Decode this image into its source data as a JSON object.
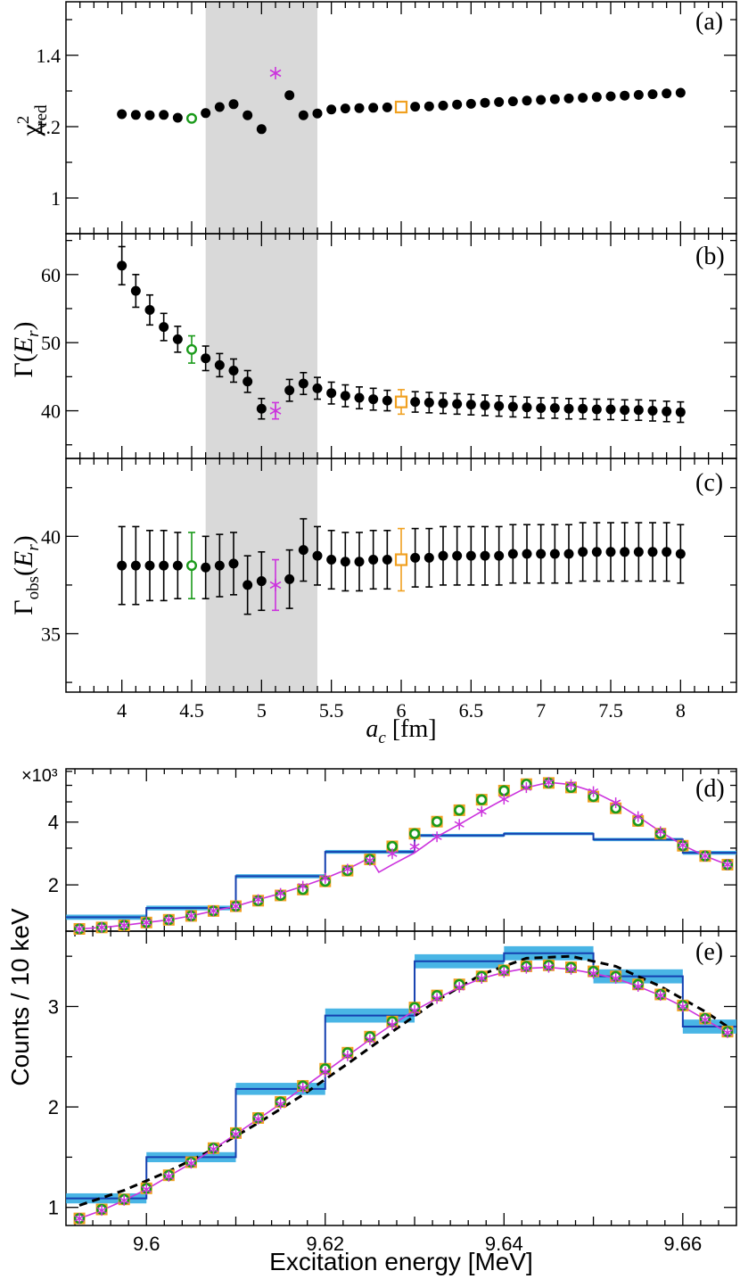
{
  "colors": {
    "black": "#000000",
    "green": "#1a9a1a",
    "orange": "#f0a020",
    "magenta": "#cc33dd",
    "band": "#d9d9d9",
    "hist_line": "#1540b0",
    "hist_fill": "#29a8e0"
  },
  "axes_labels": {
    "top_xlabel_var": "a",
    "top_xlabel_sub": "c",
    "top_xlabel_unit": " [fm]",
    "panel_a_ylabel_main": "χ",
    "panel_a_ylabel_sup": "2",
    "panel_a_ylabel_sub": "red",
    "panel_b_ylabel_main": "Γ(",
    "panel_b_ylabel_var": "E",
    "panel_b_ylabel_sub": "r",
    "panel_b_ylabel_end": ")",
    "panel_c_ylabel_main": "Γ",
    "panel_c_ylabel_sub": "obs",
    "panel_c_ylabel_paren": "(",
    "panel_c_ylabel_var": "E",
    "panel_c_ylabel_sub2": "r",
    "panel_c_ylabel_end": ")",
    "bottom_ylabel": "Counts / 10 keV",
    "bottom_xlabel": "Excitation energy [MeV]",
    "multiplier": "×10³"
  },
  "chart_data": [
    {
      "panel": "(a)",
      "type": "scatter",
      "xlim": [
        3.6,
        8.4
      ],
      "ylim": [
        0.9,
        1.55
      ],
      "yticks": [
        1,
        1.2,
        1.4
      ],
      "shaded_band": [
        4.6,
        5.4
      ],
      "series": [
        {
          "name": "fits",
          "x": [
            4.0,
            4.1,
            4.2,
            4.3,
            4.4,
            4.6,
            4.7,
            4.8,
            4.9,
            5.0,
            5.2,
            5.3,
            5.4,
            5.5,
            5.6,
            5.7,
            5.8,
            5.9,
            6.1,
            6.2,
            6.3,
            6.4,
            6.5,
            6.6,
            6.7,
            6.8,
            6.9,
            7.0,
            7.1,
            7.2,
            7.3,
            7.4,
            7.5,
            7.6,
            7.7,
            7.8,
            7.9,
            8.0
          ],
          "y": [
            1.235,
            1.233,
            1.232,
            1.233,
            1.225,
            1.238,
            1.255,
            1.263,
            1.232,
            1.193,
            1.288,
            1.232,
            1.237,
            1.248,
            1.251,
            1.252,
            1.253,
            1.254,
            1.256,
            1.257,
            1.259,
            1.262,
            1.264,
            1.267,
            1.269,
            1.271,
            1.273,
            1.275,
            1.277,
            1.279,
            1.281,
            1.283,
            1.285,
            1.287,
            1.289,
            1.291,
            1.293,
            1.295
          ]
        },
        {
          "name": "green",
          "x": [
            4.5
          ],
          "y": [
            1.223
          ]
        },
        {
          "name": "magenta",
          "x": [
            5.1
          ],
          "y": [
            1.35
          ]
        },
        {
          "name": "orange",
          "x": [
            6.0
          ],
          "y": [
            1.255
          ]
        }
      ]
    },
    {
      "panel": "(b)",
      "type": "scatter",
      "xlim": [
        3.6,
        8.4
      ],
      "ylim": [
        33,
        66
      ],
      "yticks": [
        40,
        50,
        60
      ],
      "shaded_band": [
        4.6,
        5.4
      ],
      "series": [
        {
          "name": "fits",
          "x": [
            4.0,
            4.1,
            4.2,
            4.3,
            4.4,
            4.6,
            4.7,
            4.8,
            4.9,
            5.0,
            5.2,
            5.3,
            5.4,
            5.5,
            5.6,
            5.7,
            5.8,
            5.9,
            6.1,
            6.2,
            6.3,
            6.4,
            6.5,
            6.6,
            6.7,
            6.8,
            6.9,
            7.0,
            7.1,
            7.2,
            7.3,
            7.4,
            7.5,
            7.6,
            7.7,
            7.8,
            7.9,
            8.0
          ],
          "y": [
            61.3,
            57.6,
            54.8,
            52.3,
            50.5,
            47.7,
            46.7,
            45.9,
            44.3,
            40.3,
            43.0,
            44.0,
            43.3,
            42.6,
            42.2,
            41.9,
            41.7,
            41.5,
            41.3,
            41.2,
            41.1,
            41.0,
            40.9,
            40.8,
            40.7,
            40.6,
            40.5,
            40.4,
            40.4,
            40.3,
            40.3,
            40.2,
            40.2,
            40.1,
            40.1,
            40.0,
            39.9,
            39.8
          ],
          "err": [
            2.8,
            2.4,
            2.2,
            2.0,
            1.9,
            1.8,
            1.7,
            1.7,
            1.6,
            1.5,
            1.6,
            1.6,
            1.6,
            1.6,
            1.6,
            1.6,
            1.6,
            1.5,
            1.5,
            1.5,
            1.5,
            1.5,
            1.5,
            1.5,
            1.5,
            1.5,
            1.5,
            1.5,
            1.5,
            1.5,
            1.5,
            1.5,
            1.5,
            1.5,
            1.5,
            1.5,
            1.5,
            1.5
          ]
        },
        {
          "name": "green",
          "x": [
            4.5
          ],
          "y": [
            49.0
          ],
          "err": [
            2.0
          ]
        },
        {
          "name": "magenta",
          "x": [
            5.1
          ],
          "y": [
            40.0
          ],
          "err": [
            1.2
          ]
        },
        {
          "name": "orange",
          "x": [
            6.0
          ],
          "y": [
            41.3
          ],
          "err": [
            1.8
          ]
        }
      ]
    },
    {
      "panel": "(c)",
      "type": "scatter",
      "xlim": [
        3.6,
        8.4
      ],
      "ylim": [
        32,
        44
      ],
      "yticks": [
        35,
        40
      ],
      "shaded_band": [
        4.6,
        5.4
      ],
      "xticks": [
        4,
        4.5,
        5,
        5.5,
        6,
        6.5,
        7,
        7.5,
        8
      ],
      "series": [
        {
          "name": "fits",
          "x": [
            4.0,
            4.1,
            4.2,
            4.3,
            4.4,
            4.6,
            4.7,
            4.8,
            4.9,
            5.0,
            5.2,
            5.3,
            5.4,
            5.5,
            5.6,
            5.7,
            5.8,
            5.9,
            6.1,
            6.2,
            6.3,
            6.4,
            6.5,
            6.6,
            6.7,
            6.8,
            6.9,
            7.0,
            7.1,
            7.2,
            7.3,
            7.4,
            7.5,
            7.6,
            7.7,
            7.8,
            7.9,
            8.0
          ],
          "y": [
            38.5,
            38.5,
            38.5,
            38.5,
            38.5,
            38.4,
            38.5,
            38.6,
            37.5,
            37.7,
            37.8,
            39.3,
            39.0,
            38.8,
            38.7,
            38.7,
            38.8,
            38.8,
            38.9,
            38.9,
            39.0,
            39.0,
            39.0,
            39.0,
            39.0,
            39.1,
            39.1,
            39.1,
            39.1,
            39.1,
            39.2,
            39.2,
            39.2,
            39.2,
            39.2,
            39.2,
            39.2,
            39.1
          ],
          "err": [
            2.0,
            2.0,
            1.8,
            1.8,
            1.7,
            1.6,
            1.6,
            1.6,
            1.5,
            1.5,
            1.5,
            1.6,
            1.5,
            1.5,
            1.5,
            1.5,
            1.5,
            1.5,
            1.5,
            1.5,
            1.5,
            1.5,
            1.5,
            1.5,
            1.5,
            1.5,
            1.5,
            1.5,
            1.5,
            1.5,
            1.5,
            1.5,
            1.5,
            1.5,
            1.5,
            1.5,
            1.5,
            1.5
          ]
        },
        {
          "name": "green",
          "x": [
            4.5
          ],
          "y": [
            38.5
          ],
          "err": [
            1.7
          ]
        },
        {
          "name": "magenta",
          "x": [
            5.1
          ],
          "y": [
            37.5
          ],
          "err": [
            1.3
          ]
        },
        {
          "name": "orange",
          "x": [
            6.0
          ],
          "y": [
            38.8
          ],
          "err": [
            1.6
          ]
        }
      ]
    },
    {
      "panel": "(d)",
      "type": "line",
      "yscale": "log",
      "xlim": [
        9.591,
        9.666
      ],
      "ylim": [
        1.2,
        7.2
      ],
      "yticks": [
        2,
        4
      ],
      "hist_edges": [
        9.59,
        9.6,
        9.61,
        9.62,
        9.63,
        9.64,
        9.65,
        9.66,
        9.67
      ],
      "hist_values": [
        1.4,
        1.55,
        2.2,
        2.88,
        3.45,
        3.52,
        3.3,
        2.85
      ],
      "hist_err": [
        0.04,
        0.04,
        0.05,
        0.06,
        0.06,
        0.06,
        0.06,
        0.06
      ],
      "points_x": [
        9.5925,
        9.595,
        9.5975,
        9.6,
        9.6025,
        9.605,
        9.6075,
        9.61,
        9.6125,
        9.615,
        9.6175,
        9.62,
        9.6225,
        9.625,
        9.6275,
        9.63,
        9.6325,
        9.635,
        9.6375,
        9.64,
        9.6425,
        9.645,
        9.6475,
        9.65,
        9.6525,
        9.655,
        9.6575,
        9.66,
        9.6625,
        9.665
      ],
      "orange_y": [
        1.23,
        1.25,
        1.28,
        1.32,
        1.36,
        1.42,
        1.5,
        1.58,
        1.68,
        1.78,
        1.9,
        2.08,
        2.34,
        2.65,
        3.06,
        3.52,
        4.02,
        4.56,
        5.12,
        5.66,
        6.08,
        6.16,
        5.86,
        5.3,
        4.66,
        4.05,
        3.52,
        3.08,
        2.75,
        2.5
      ],
      "green_y": [
        1.23,
        1.25,
        1.28,
        1.32,
        1.36,
        1.42,
        1.5,
        1.58,
        1.68,
        1.78,
        1.9,
        2.08,
        2.34,
        2.65,
        3.06,
        3.52,
        4.02,
        4.56,
        5.12,
        5.66,
        6.08,
        6.16,
        5.86,
        5.3,
        4.66,
        4.05,
        3.52,
        3.08,
        2.75,
        2.5
      ],
      "magenta_y": [
        1.23,
        1.25,
        1.28,
        1.32,
        1.36,
        1.42,
        1.5,
        1.58,
        1.7,
        1.82,
        1.97,
        2.15,
        2.38,
        2.62,
        2.82,
        3.05,
        3.4,
        3.9,
        4.5,
        5.15,
        5.85,
        6.2,
        6.05,
        5.6,
        4.95,
        4.25,
        3.6,
        3.1,
        2.75,
        2.5
      ],
      "magenta_curve_x": [
        9.5925,
        9.595,
        9.5975,
        9.6,
        9.6025,
        9.605,
        9.6075,
        9.61,
        9.6125,
        9.615,
        9.6175,
        9.62,
        9.6225,
        9.625,
        9.626,
        9.6275,
        9.63,
        9.6325,
        9.635,
        9.6375,
        9.64,
        9.6425,
        9.645,
        9.6475,
        9.65,
        9.6525,
        9.655,
        9.6575,
        9.66,
        9.6625,
        9.665
      ],
      "magenta_curve_y": [
        1.23,
        1.25,
        1.28,
        1.32,
        1.36,
        1.42,
        1.5,
        1.58,
        1.7,
        1.82,
        1.97,
        2.15,
        2.38,
        2.7,
        2.3,
        2.5,
        2.85,
        3.4,
        3.9,
        4.5,
        5.15,
        5.85,
        6.2,
        6.05,
        5.6,
        4.95,
        4.25,
        3.6,
        3.1,
        2.75,
        2.5
      ]
    },
    {
      "panel": "(e)",
      "type": "line",
      "xlim": [
        9.591,
        9.666
      ],
      "ylim": [
        0.82,
        3.75
      ],
      "yticks": [
        1,
        2,
        3
      ],
      "xticks": [
        9.6,
        9.62,
        9.64,
        9.66
      ],
      "hist_edges": [
        9.59,
        9.6,
        9.61,
        9.62,
        9.63,
        9.64,
        9.65,
        9.66,
        9.67
      ],
      "hist_values": [
        1.09,
        1.5,
        2.18,
        2.91,
        3.45,
        3.53,
        3.3,
        2.8
      ],
      "hist_err": [
        0.05,
        0.05,
        0.06,
        0.07,
        0.07,
        0.07,
        0.07,
        0.07
      ],
      "points_x": [
        9.5925,
        9.595,
        9.5975,
        9.6,
        9.6025,
        9.605,
        9.6075,
        9.61,
        9.6125,
        9.615,
        9.6175,
        9.62,
        9.6225,
        9.625,
        9.6275,
        9.63,
        9.6325,
        9.635,
        9.6375,
        9.64,
        9.6425,
        9.645,
        9.6475,
        9.65,
        9.6525,
        9.655,
        9.6575,
        9.66,
        9.6625,
        9.665
      ],
      "orange_y": [
        0.89,
        0.98,
        1.08,
        1.19,
        1.32,
        1.45,
        1.59,
        1.74,
        1.89,
        2.05,
        2.21,
        2.38,
        2.54,
        2.7,
        2.85,
        2.99,
        3.11,
        3.22,
        3.3,
        3.36,
        3.4,
        3.41,
        3.39,
        3.35,
        3.3,
        3.22,
        3.12,
        3.01,
        2.88,
        2.75
      ],
      "green_y": [
        0.89,
        0.98,
        1.08,
        1.19,
        1.32,
        1.45,
        1.59,
        1.74,
        1.89,
        2.05,
        2.21,
        2.38,
        2.54,
        2.7,
        2.85,
        2.99,
        3.11,
        3.22,
        3.3,
        3.36,
        3.4,
        3.41,
        3.39,
        3.35,
        3.3,
        3.22,
        3.12,
        3.01,
        2.88,
        2.75
      ],
      "magenta_y": [
        0.89,
        0.97,
        1.07,
        1.18,
        1.31,
        1.44,
        1.58,
        1.73,
        1.88,
        2.03,
        2.19,
        2.35,
        2.51,
        2.67,
        2.82,
        2.96,
        3.08,
        3.19,
        3.28,
        3.34,
        3.38,
        3.39,
        3.37,
        3.33,
        3.28,
        3.2,
        3.11,
        3.0,
        2.87,
        2.74
      ],
      "dashed_x": [
        9.5925,
        9.5975,
        9.6025,
        9.6075,
        9.6125,
        9.6175,
        9.6225,
        9.6275,
        9.6325,
        9.6375,
        9.6425,
        9.6475,
        9.6525,
        9.6575,
        9.6625,
        9.665
      ],
      "dashed_y": [
        1.02,
        1.17,
        1.36,
        1.58,
        1.84,
        2.12,
        2.43,
        2.75,
        3.06,
        3.32,
        3.48,
        3.5,
        3.4,
        3.2,
        2.95,
        2.8
      ]
    }
  ],
  "tick_labels": {
    "a": [
      "1",
      "1.2",
      "1.4"
    ],
    "b": [
      "40",
      "50",
      "60"
    ],
    "c": [
      "35",
      "40"
    ],
    "top_x": [
      "4",
      "4.5",
      "5",
      "5.5",
      "6",
      "6.5",
      "7",
      "7.5",
      "8"
    ],
    "d": [
      "2",
      "4"
    ],
    "e": [
      "1",
      "2",
      "3"
    ],
    "bottom_x": [
      "9.6",
      "9.62",
      "9.64",
      "9.66"
    ]
  }
}
